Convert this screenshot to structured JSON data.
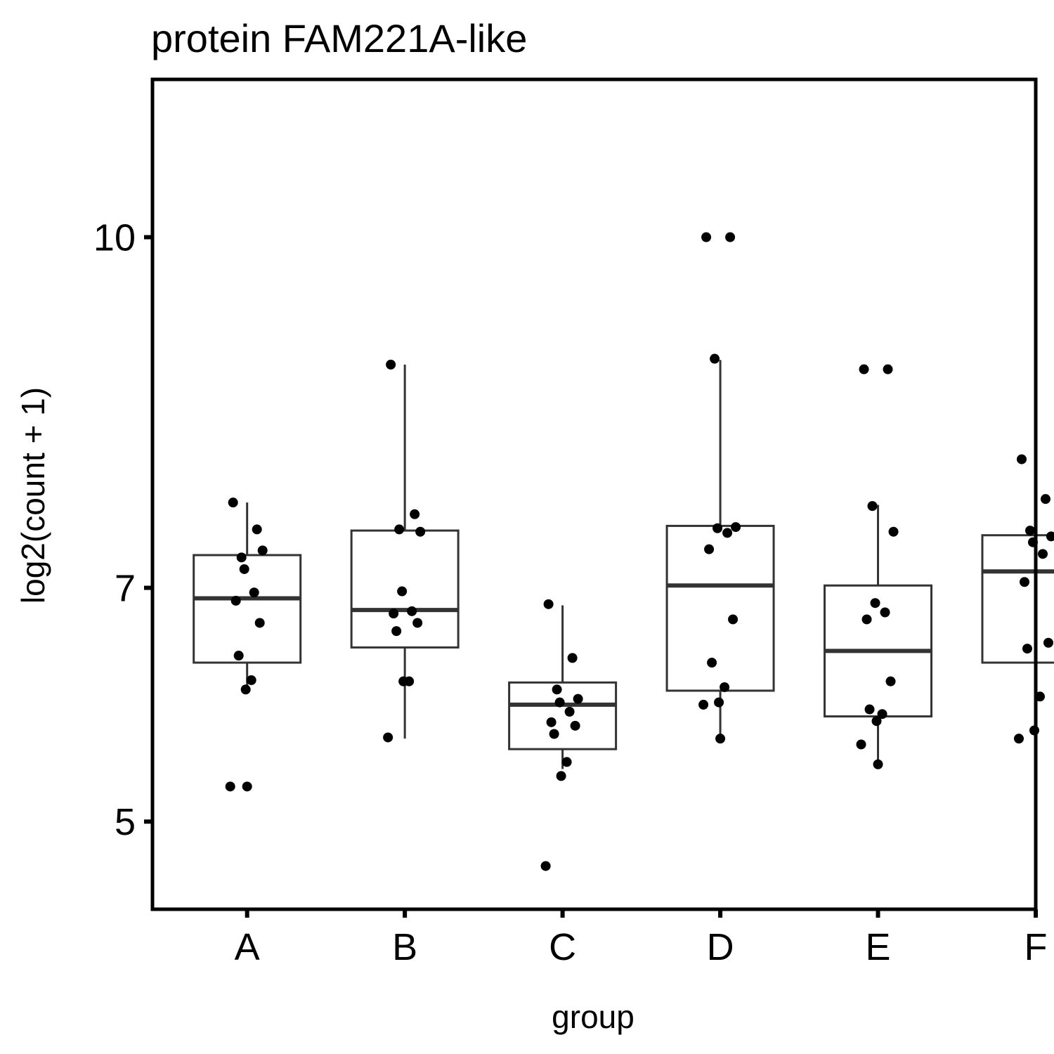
{
  "chart_data": {
    "type": "box",
    "title": "protein FAM221A-like",
    "xlabel": "group",
    "ylabel": "log2(count + 1)",
    "ylim": [
      4.25,
      11.35
    ],
    "yticks": [
      5,
      7,
      10
    ],
    "categories": [
      "A",
      "B",
      "C",
      "D",
      "E",
      "F"
    ],
    "boxes": [
      {
        "category": "A",
        "lower_whisker": 6.12,
        "q1": 6.36,
        "median": 6.91,
        "q3": 7.28,
        "upper_whisker": 7.73
      },
      {
        "category": "B",
        "lower_whisker": 5.71,
        "q1": 6.49,
        "median": 6.81,
        "q3": 7.49,
        "upper_whisker": 8.91
      },
      {
        "category": "C",
        "lower_whisker": 5.45,
        "q1": 5.62,
        "median": 6.0,
        "q3": 6.19,
        "upper_whisker": 6.85
      },
      {
        "category": "D",
        "lower_whisker": 5.71,
        "q1": 6.12,
        "median": 7.02,
        "q3": 7.53,
        "upper_whisker": 8.95
      },
      {
        "category": "E",
        "lower_whisker": 5.5,
        "q1": 5.9,
        "median": 6.46,
        "q3": 7.02,
        "upper_whisker": 7.71
      },
      {
        "category": "F",
        "lower_whisker": 5.71,
        "q1": 6.36,
        "median": 7.14,
        "q3": 7.45,
        "upper_whisker": 8.1
      }
    ],
    "points": [
      {
        "category": "A",
        "values": [
          7.73,
          7.5,
          7.26,
          7.32,
          7.16,
          6.96,
          6.89,
          6.7,
          6.42,
          6.21,
          6.13,
          5.3,
          5.3
        ]
      },
      {
        "category": "B",
        "values": [
          8.91,
          7.63,
          7.5,
          7.48,
          6.97,
          6.8,
          6.78,
          6.7,
          6.63,
          6.2,
          6.2,
          5.72
        ]
      },
      {
        "category": "C",
        "values": [
          6.86,
          6.4,
          6.13,
          6.05,
          6.02,
          5.94,
          5.85,
          5.82,
          5.75,
          5.51,
          5.39,
          4.62
        ]
      },
      {
        "category": "D",
        "values": [
          10.0,
          10.0,
          8.96,
          7.52,
          7.51,
          7.47,
          7.33,
          6.73,
          6.36,
          6.15,
          6.02,
          6.0,
          5.71
        ]
      },
      {
        "category": "E",
        "values": [
          8.87,
          8.87,
          7.7,
          7.48,
          6.87,
          6.79,
          6.73,
          6.2,
          5.96,
          5.92,
          5.86,
          5.66,
          5.49
        ]
      },
      {
        "category": "F",
        "values": [
          8.1,
          7.76,
          7.49,
          7.44,
          7.39,
          7.29,
          7.05,
          6.53,
          6.48,
          6.07,
          5.78,
          5.71
        ]
      }
    ],
    "grid": false,
    "legend": "none"
  }
}
